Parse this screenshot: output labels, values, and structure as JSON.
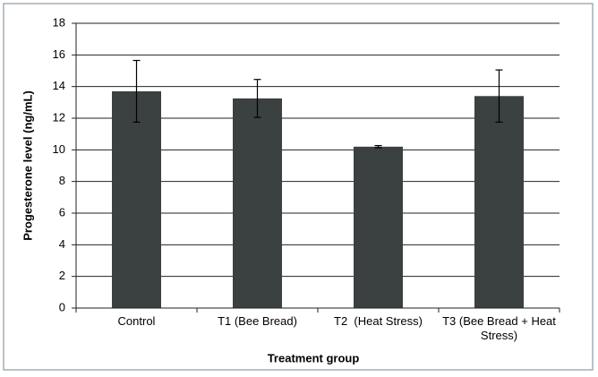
{
  "chart_data": {
    "type": "bar",
    "x_label": "Treatment group",
    "y_label": "Progesterone level (ng/mL)",
    "categories": [
      "Control",
      "T1 (Bee Bread)",
      "T2  (Heat Stress)",
      "T3 (Bee Bread + Heat Stress)"
    ],
    "values": [
      13.7,
      13.25,
      10.2,
      13.4
    ],
    "errors": [
      1.95,
      1.2,
      0.07,
      1.65
    ],
    "color": "#3b4040",
    "ylim": [
      0,
      18
    ],
    "yticks": [
      0,
      2,
      4,
      6,
      8,
      10,
      12,
      14,
      16,
      18
    ],
    "grid": true
  }
}
